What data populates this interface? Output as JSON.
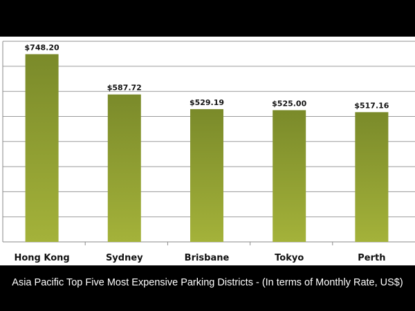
{
  "chart_data": {
    "type": "bar",
    "title": "Asia Pacific Top Five Most Expensive Parking Districts - (In terms of Monthly Rate, US$)",
    "categories": [
      "Hong Kong",
      "Sydney",
      "Brisbane",
      "Tokyo",
      "Perth"
    ],
    "values": [
      748.2,
      587.72,
      529.19,
      525.0,
      517.16
    ],
    "value_labels": [
      "$748.20",
      "$587.72",
      "$529.19",
      "$525.00",
      "$517.16"
    ],
    "xlabel": "",
    "ylabel": "",
    "ylim": [
      0,
      800
    ],
    "grid": true,
    "legend": "none",
    "colors": {
      "bar_top": "#7a8a2a",
      "bar_bottom": "#a4b23a",
      "grid": "#9a9a9a",
      "background": "#ffffff",
      "frame": "#000000",
      "caption_text": "#ffffff"
    }
  }
}
